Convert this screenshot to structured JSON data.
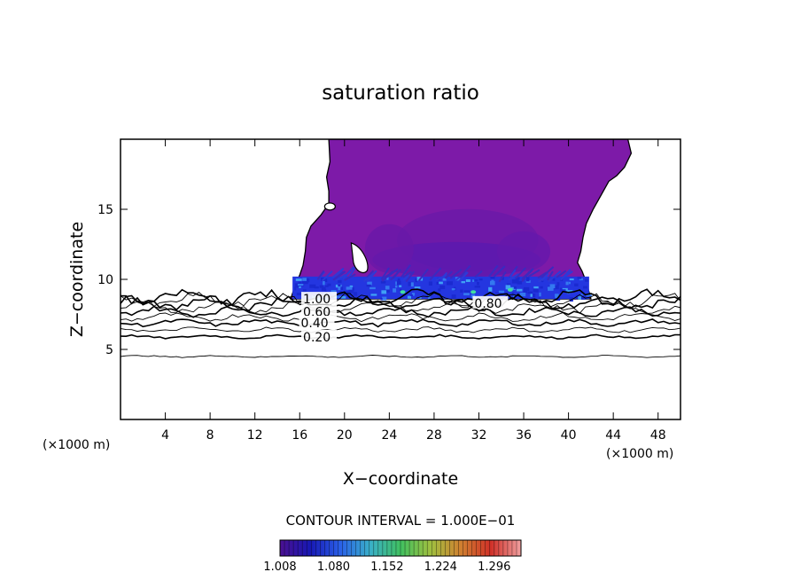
{
  "chart_data": {
    "type": "contour",
    "title": "saturation ratio",
    "xlabel": "X−coordinate",
    "ylabel": "Z−coordinate",
    "x_unit": "(×1000 m)",
    "x_unit_right": "(×1000 m)",
    "xlim": [
      0,
      50
    ],
    "ylim": [
      0,
      20
    ],
    "x_ticks": [
      4,
      8,
      12,
      16,
      20,
      24,
      28,
      32,
      36,
      40,
      44,
      48
    ],
    "x_tick_labels": [
      "4",
      "8",
      "12",
      "16",
      "20",
      "24",
      "28",
      "32",
      "36",
      "40",
      "44",
      "48"
    ],
    "y_ticks": [
      5,
      10,
      15
    ],
    "y_tick_labels": [
      "5",
      "10",
      "15"
    ],
    "contour_interval_text": "CONTOUR INTERVAL = 1.000E−01",
    "contour_lines": [
      {
        "level": 0.1,
        "z": 4.5
      },
      {
        "level": 0.2,
        "z": 5.9
      },
      {
        "level": 0.3,
        "z": 6.4
      },
      {
        "level": 0.4,
        "z": 6.9
      },
      {
        "level": 0.5,
        "z": 7.3
      },
      {
        "level": 0.6,
        "z": 7.7
      },
      {
        "level": 0.7,
        "z": 8.0
      },
      {
        "level": 0.8,
        "z": 8.3
      },
      {
        "level": 0.9,
        "z": 8.5
      },
      {
        "level": 1.0,
        "z": 8.7
      }
    ],
    "contour_labels": [
      {
        "text": "1.00",
        "x": 16.3,
        "z": 8.6
      },
      {
        "text": "0.80",
        "x": 31.6,
        "z": 8.3
      },
      {
        "text": "0.60",
        "x": 16.3,
        "z": 7.7
      },
      {
        "text": "0.40",
        "x": 16.1,
        "z": 6.9
      },
      {
        "text": "0.20",
        "x": 16.3,
        "z": 5.9
      }
    ],
    "supersaturated_region": {
      "x_range": [
        15.2,
        42.0
      ],
      "z_range": [
        8.6,
        20.0
      ],
      "dominant_value": 1.01,
      "max_value": 1.16,
      "max_near": {
        "x": 35,
        "z": 9.2
      }
    },
    "colorbar": {
      "min": 1.008,
      "max": 1.332,
      "tick_values": [
        1.008,
        1.08,
        1.152,
        1.224,
        1.296
      ],
      "tick_labels": [
        "1.008",
        "1.080",
        "1.152",
        "1.224",
        "1.296"
      ],
      "colors": [
        "#4b1090",
        "#1818b4",
        "#2a60e8",
        "#3ab0c8",
        "#40c060",
        "#a0c040",
        "#d08030",
        "#d03028",
        "#f0a0a0"
      ]
    }
  }
}
